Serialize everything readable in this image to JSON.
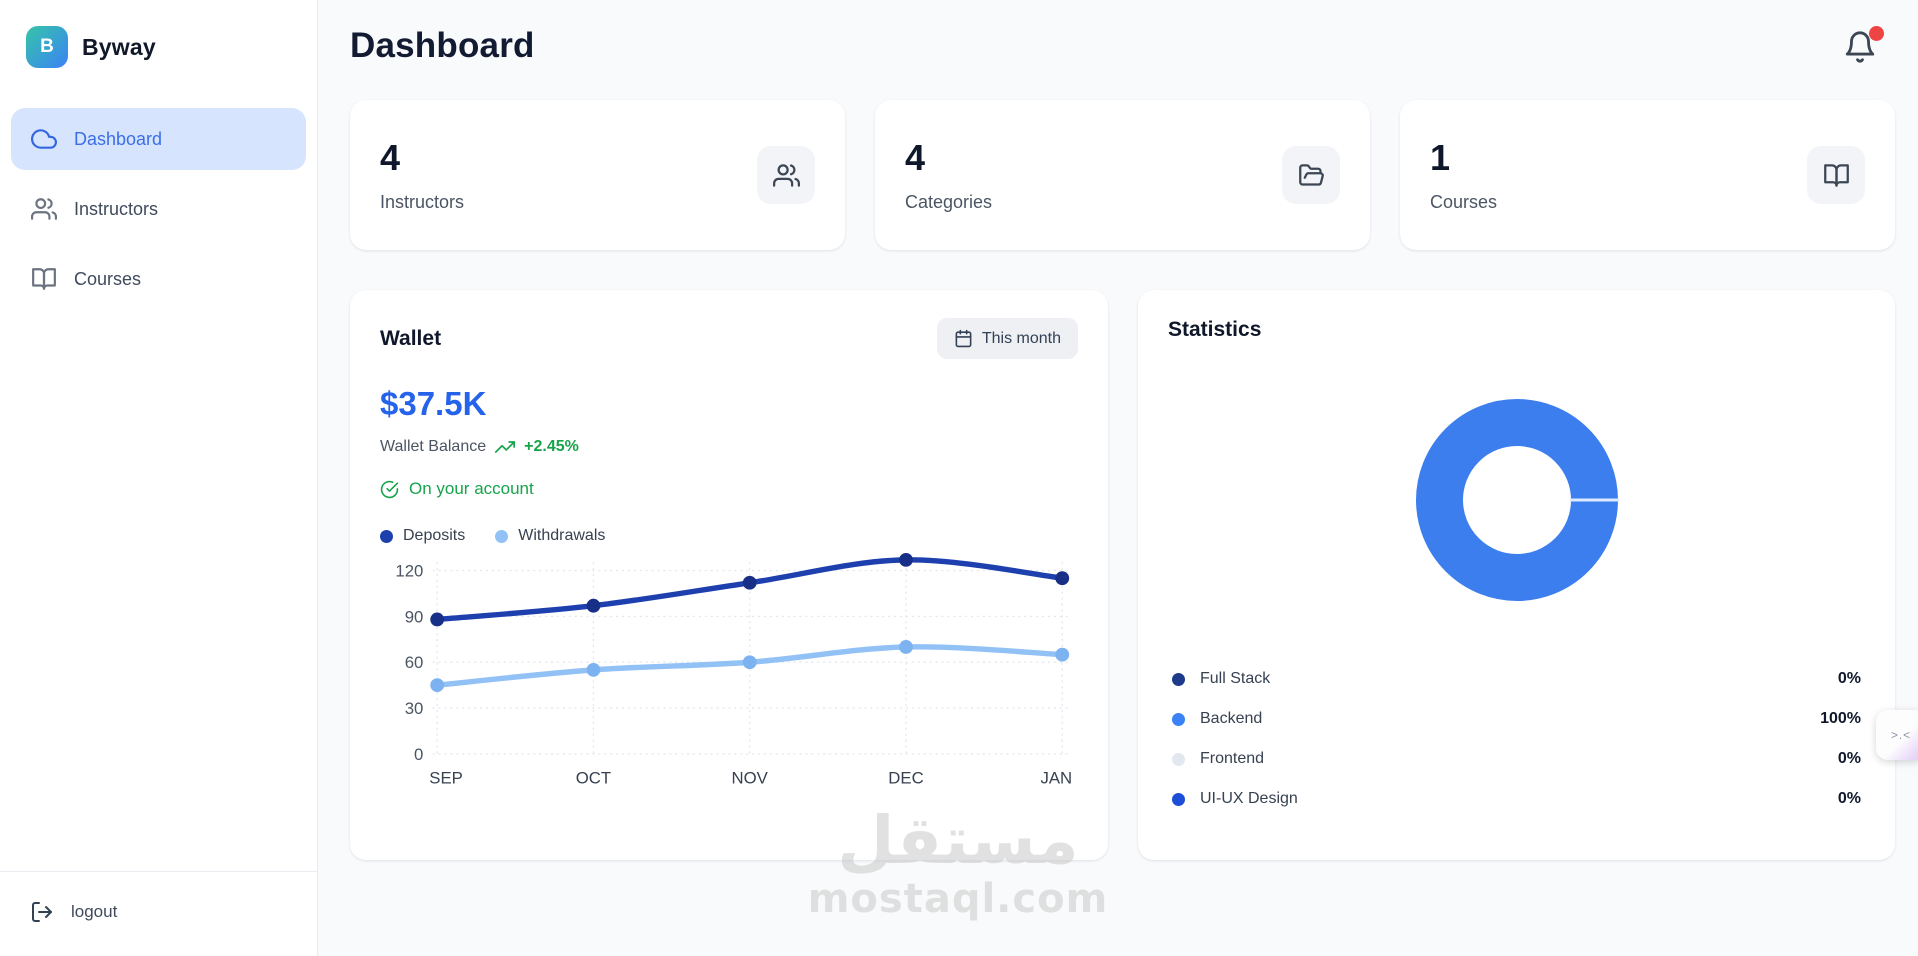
{
  "brand": {
    "name": "Byway",
    "logo_letter": "B"
  },
  "sidebar": {
    "items": [
      {
        "label": "Dashboard",
        "icon": "cloud-icon",
        "active": true
      },
      {
        "label": "Instructors",
        "icon": "users-icon",
        "active": false
      },
      {
        "label": "Courses",
        "icon": "book-open-icon",
        "active": false
      }
    ],
    "logout_label": "logout"
  },
  "header": {
    "title": "Dashboard",
    "notification": {
      "icon": "bell-icon",
      "unread_dot_color": "#ee4444"
    }
  },
  "stat_cards": [
    {
      "value": "4",
      "label": "Instructors",
      "icon": "users-icon"
    },
    {
      "value": "4",
      "label": "Categories",
      "icon": "folder-open-icon"
    },
    {
      "value": "1",
      "label": "Courses",
      "icon": "book-open-icon"
    }
  ],
  "wallet": {
    "title": "Wallet",
    "period_button": "This month",
    "balance": "$37.5K",
    "balance_label": "Wallet Balance",
    "change": "+2.45%",
    "change_color": "#16a34a",
    "account_note": "On your account",
    "balance_color": "#2563eb",
    "legend": [
      {
        "label": "Deposits",
        "color": "#1e40af"
      },
      {
        "label": "Withdrawals",
        "color": "#92c1f6"
      }
    ]
  },
  "statistics": {
    "title": "Statistics",
    "legend": [
      {
        "label": "Full Stack",
        "value": "0%",
        "color": "#1e3a8a"
      },
      {
        "label": "Backend",
        "value": "100%",
        "color": "#3b82f6"
      },
      {
        "label": "Frontend",
        "value": "0%",
        "color": "#e2e8f0"
      },
      {
        "label": "UI-UX Design",
        "value": "0%",
        "color": "#1d4ed8"
      }
    ]
  },
  "watermark": {
    "arabic": "مستقل",
    "domain": "mostaql.com"
  },
  "float_widget": {
    "label": ">.<"
  },
  "chart_data": [
    {
      "type": "line",
      "title": "Wallet — Deposits vs Withdrawals",
      "x": [
        "SEP",
        "OCT",
        "NOV",
        "DEC",
        "JAN"
      ],
      "series": [
        {
          "name": "Deposits",
          "color": "#1e40af",
          "point_color": "#172f87",
          "values": [
            88,
            97,
            112,
            127,
            115
          ]
        },
        {
          "name": "Withdrawals",
          "color": "#92c1f6",
          "point_color": "#7db2f0",
          "values": [
            45,
            55,
            60,
            70,
            65
          ]
        }
      ],
      "ylim": [
        0,
        120
      ],
      "yticks": [
        0,
        30,
        60,
        90,
        120
      ],
      "grid": "dotted",
      "legend_position": "top-left"
    },
    {
      "type": "pie",
      "donut": true,
      "title": "Statistics",
      "categories": [
        "Full Stack",
        "Backend",
        "Frontend",
        "UI-UX Design"
      ],
      "values": [
        0,
        100,
        0,
        0
      ],
      "colors": [
        "#1e3a8a",
        "#3d7eee",
        "#e2e8f0",
        "#1d4ed8"
      ],
      "separator_color": "#dbeafe",
      "legend_position": "bottom"
    }
  ]
}
